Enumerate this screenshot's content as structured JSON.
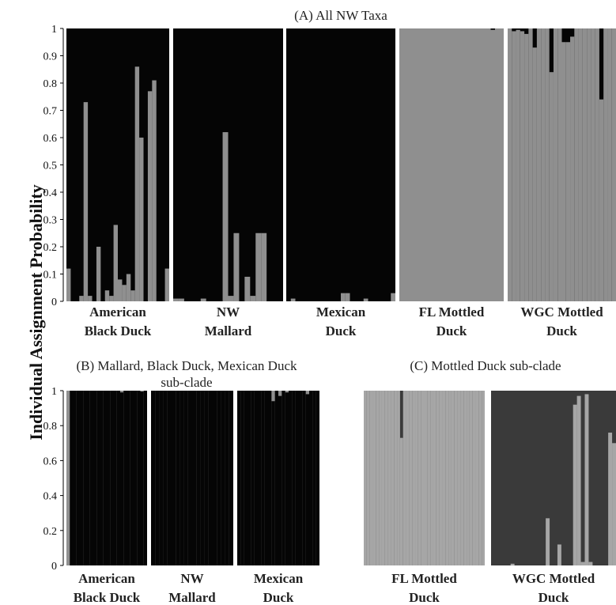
{
  "colors": {
    "black": "#050505",
    "gray": "#8f8f8f",
    "light_gray": "#a6a6a6",
    "dark_gray": "#3a3a3a",
    "axis": "#000000"
  },
  "y_axis_label": "Individual Assignment Probability",
  "chart_data": [
    {
      "id": "A",
      "type": "bar",
      "stacked": true,
      "title": "(A) All NW Taxa",
      "ylim": [
        0,
        1
      ],
      "yticks": [
        0,
        0.1,
        0.2,
        0.3,
        0.4,
        0.5,
        0.6,
        0.7,
        0.8,
        0.9,
        1
      ],
      "ytick_labels": [
        "0",
        "0.1",
        "0.2",
        "0.3",
        "0.4",
        "0.5",
        "0.6",
        "0.7",
        "0.8",
        "0.9",
        "1"
      ],
      "cluster_colors": [
        "black",
        "gray"
      ],
      "plotted_series": "gray",
      "groups": [
        {
          "label": "American Black Duck",
          "label_lines": [
            "American",
            "Black Duck"
          ],
          "values": [
            0.12,
            0,
            0,
            0.02,
            0.73,
            0.02,
            0,
            0.2,
            0,
            0.04,
            0.02,
            0.28,
            0.08,
            0.06,
            0.1,
            0.04,
            0.86,
            0.6,
            0,
            0.77,
            0.81,
            0,
            0,
            0.12
          ]
        },
        {
          "label": "NW Mallard",
          "label_lines": [
            "NW",
            "Mallard"
          ],
          "values": [
            0.01,
            0.01,
            0,
            0,
            0,
            0.01,
            0,
            0,
            0,
            0.62,
            0.02,
            0.25,
            0,
            0.09,
            0.02,
            0.25,
            0.25,
            0,
            0,
            0
          ]
        },
        {
          "label": "Mexican Duck",
          "label_lines": [
            "Mexican",
            "Duck"
          ],
          "values": [
            0,
            0.01,
            0,
            0,
            0,
            0,
            0,
            0,
            0,
            0,
            0,
            0,
            0.03,
            0.03,
            0,
            0,
            0,
            0.01,
            0,
            0,
            0,
            0,
            0,
            0.03
          ]
        },
        {
          "label": "FL Mottled Duck",
          "label_lines": [
            "FL Mottled",
            "Duck"
          ],
          "values": [
            1,
            1,
            1,
            1,
            1,
            1,
            1,
            1,
            1,
            1,
            1,
            1,
            1,
            1,
            1,
            1,
            1,
            1,
            1,
            1,
            1,
            0.995,
            1,
            1
          ]
        },
        {
          "label": "WGC Mottled Duck",
          "label_lines": [
            "WGC Mottled",
            "Duck"
          ],
          "values": [
            1,
            0.99,
            0.995,
            0.99,
            0.98,
            1,
            0.93,
            1,
            1,
            1,
            0.84,
            1,
            1,
            0.95,
            0.95,
            0.97,
            1,
            1,
            1,
            1,
            1,
            1,
            0.74,
            1,
            1,
            1
          ]
        }
      ]
    },
    {
      "id": "B",
      "type": "bar",
      "stacked": true,
      "title": "(B) Mallard, Black Duck, Mexican Duck sub-clade",
      "title_lines": [
        "(B) Mallard, Black Duck, Mexican Duck",
        "sub-clade"
      ],
      "ylim": [
        0,
        1
      ],
      "yticks": [
        0,
        0.2,
        0.4,
        0.6,
        0.8,
        1
      ],
      "ytick_labels": [
        "0",
        "0.2",
        "0.4",
        "0.6",
        "0.8",
        "1"
      ],
      "cluster_colors": [
        "black",
        "gray"
      ],
      "plotted_series": "black",
      "groups": [
        {
          "label": "American Black Duck",
          "label_lines": [
            "American",
            "Black Duck"
          ],
          "values": [
            0,
            1,
            1,
            1,
            1,
            1,
            1,
            1,
            1,
            1,
            1,
            1,
            1,
            1,
            1,
            1,
            0.99,
            1,
            1,
            1,
            1,
            1,
            0.995,
            1
          ]
        },
        {
          "label": "NW Mallard",
          "label_lines": [
            "NW",
            "Mallard"
          ],
          "values": [
            1,
            1,
            1,
            1,
            1,
            1,
            1,
            1,
            1,
            1,
            1,
            1,
            1,
            1,
            1,
            1,
            1,
            1,
            1,
            1
          ]
        },
        {
          "label": "Mexican Duck",
          "label_lines": [
            "Mexican",
            "Duck"
          ],
          "values": [
            1,
            1,
            1,
            1,
            1,
            1,
            1,
            1,
            1,
            1,
            0.94,
            1,
            0.97,
            1,
            0.99,
            1,
            1,
            1,
            1,
            1,
            0.98,
            1,
            1,
            1
          ]
        }
      ]
    },
    {
      "id": "C",
      "type": "bar",
      "stacked": true,
      "title": "(C) Mottled Duck sub-clade",
      "ylim": [
        0,
        1
      ],
      "cluster_colors": [
        "light_gray",
        "dark_gray"
      ],
      "plotted_series": "light_gray",
      "groups": [
        {
          "label": "FL Mottled Duck",
          "label_lines": [
            "FL Mottled",
            "Duck"
          ],
          "values": [
            1,
            1,
            1,
            1,
            1,
            1,
            1,
            1,
            1,
            1,
            1,
            1,
            0.73,
            1,
            1,
            1,
            1,
            1,
            1,
            1,
            1,
            1,
            1,
            1,
            1,
            1,
            1,
            1,
            1,
            1,
            1,
            1,
            1,
            1,
            1,
            1,
            1,
            1,
            1,
            1
          ]
        },
        {
          "label": "WGC Mottled Duck",
          "label_lines": [
            "WGC Mottled",
            "Duck"
          ],
          "values": [
            0,
            0,
            0,
            0,
            0,
            0.01,
            0,
            0,
            0,
            0,
            0,
            0,
            0,
            0,
            0.27,
            0,
            0,
            0.12,
            0,
            0,
            0,
            0.92,
            0.97,
            0.02,
            0.98,
            0.02,
            0,
            0,
            0,
            0,
            0.76,
            0.7
          ]
        }
      ]
    }
  ]
}
